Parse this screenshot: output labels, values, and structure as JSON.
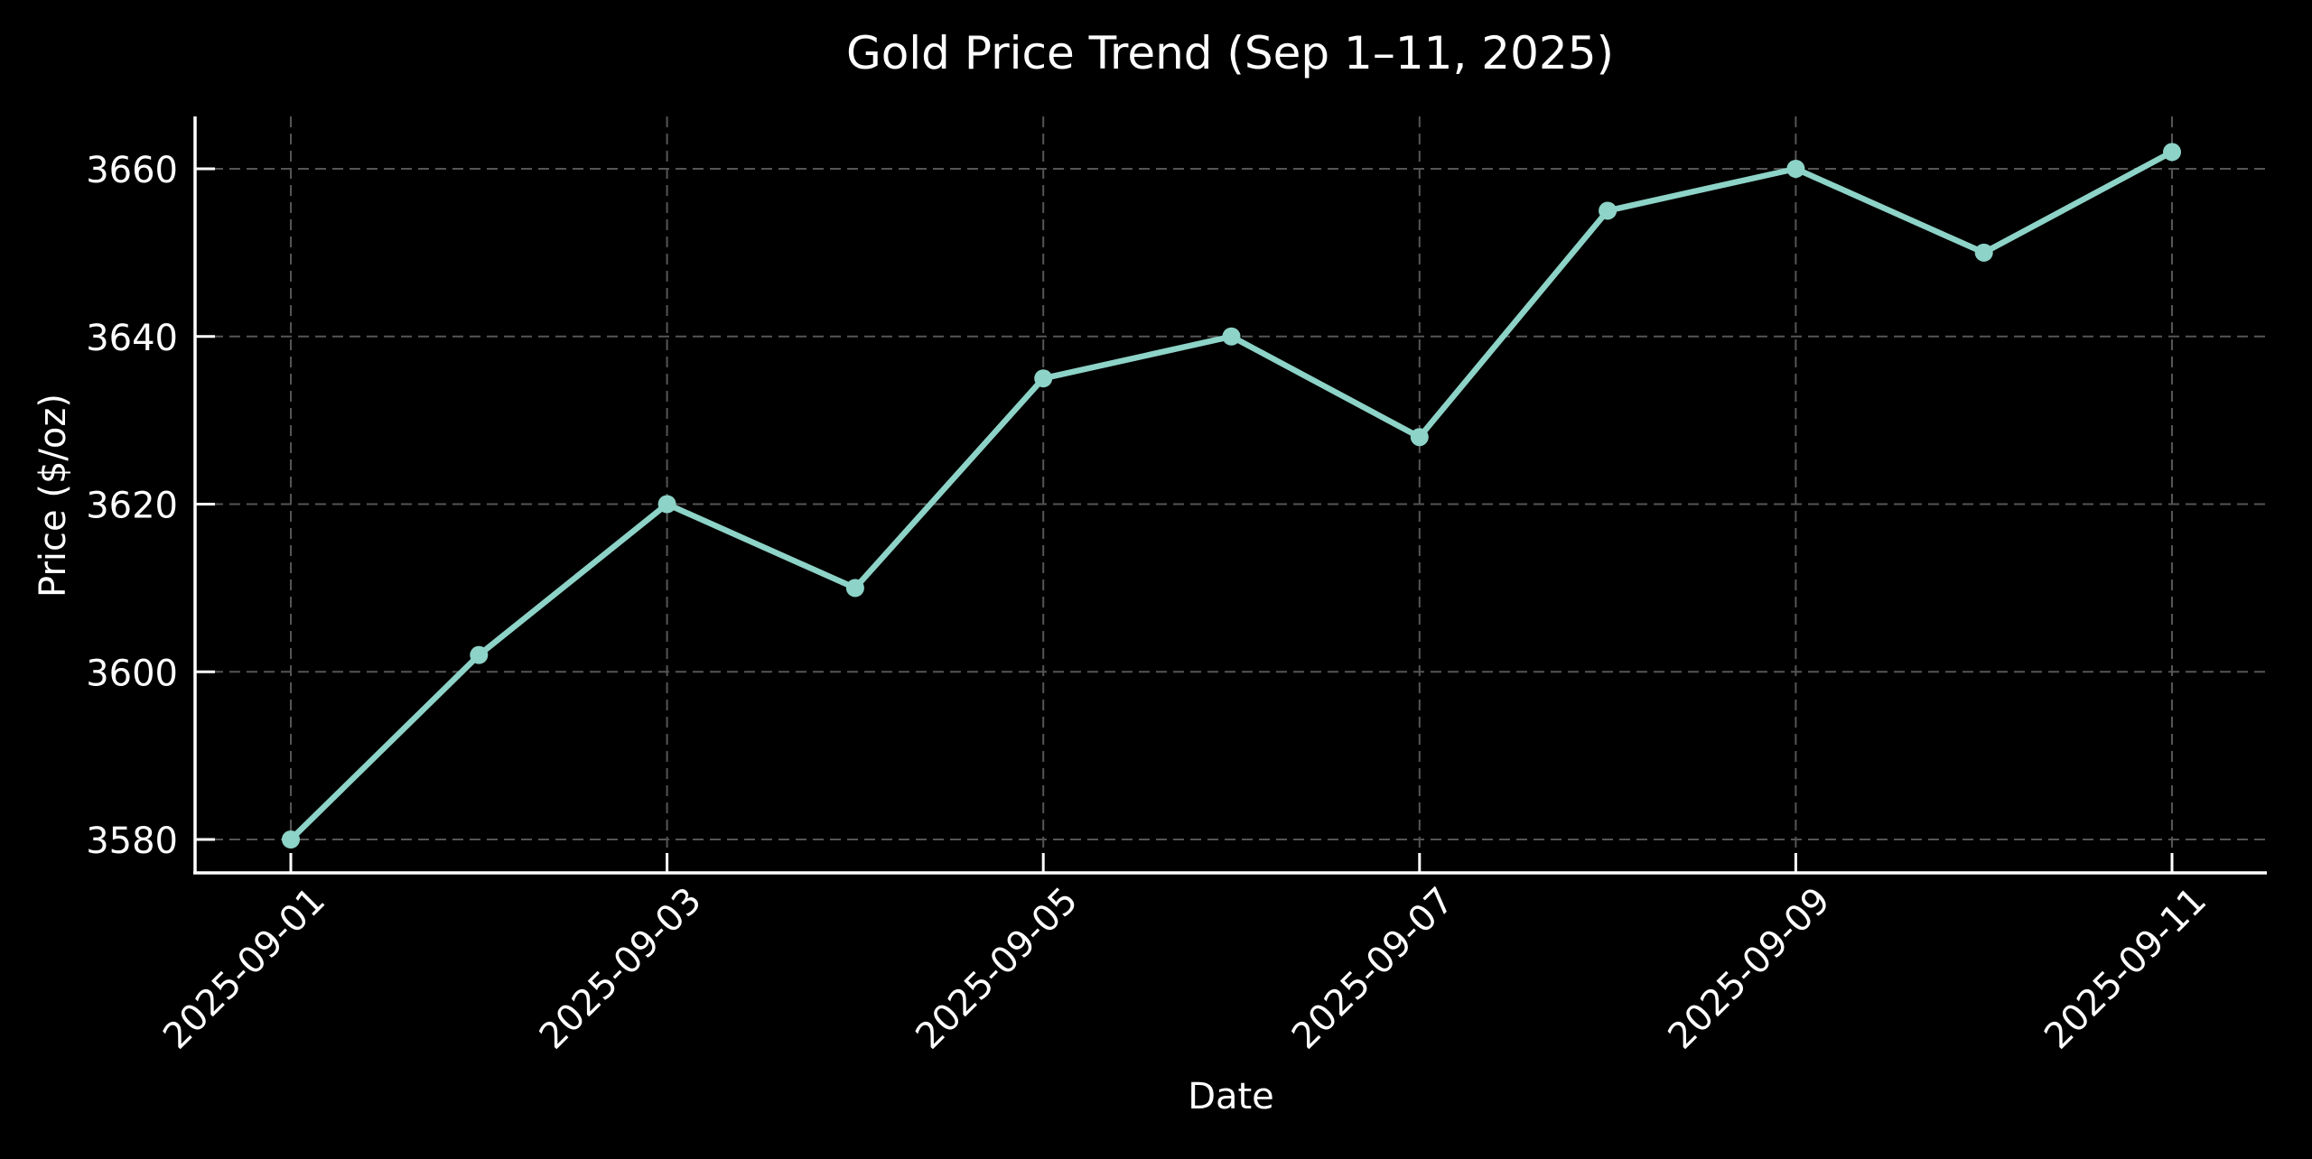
{
  "chart_data": {
    "type": "line",
    "title": "Gold Price Trend (Sep 1–11, 2025)",
    "xlabel": "Date",
    "ylabel": "Price ($/oz)",
    "x": [
      "2025-09-01",
      "2025-09-02",
      "2025-09-03",
      "2025-09-04",
      "2025-09-05",
      "2025-09-06",
      "2025-09-07",
      "2025-09-08",
      "2025-09-09",
      "2025-09-10",
      "2025-09-11"
    ],
    "series": [
      {
        "name": "Gold Price",
        "color": "#8dd3c7",
        "marker": "circle",
        "values": [
          3580,
          3602,
          3620,
          3610,
          3635,
          3640,
          3628,
          3655,
          3660,
          3650,
          3662
        ]
      }
    ],
    "xticks": [
      "2025-09-01",
      "2025-09-03",
      "2025-09-05",
      "2025-09-07",
      "2025-09-09",
      "2025-09-11"
    ],
    "yticks": [
      3580,
      3600,
      3620,
      3640,
      3660
    ],
    "ylim": [
      3576,
      3666
    ],
    "grid": true,
    "grid_style": "dashed",
    "legend": null,
    "theme": {
      "background": "#000000",
      "text_color": "#ffffff",
      "grid_color": "#555555",
      "spine_color": "#ffffff"
    }
  }
}
